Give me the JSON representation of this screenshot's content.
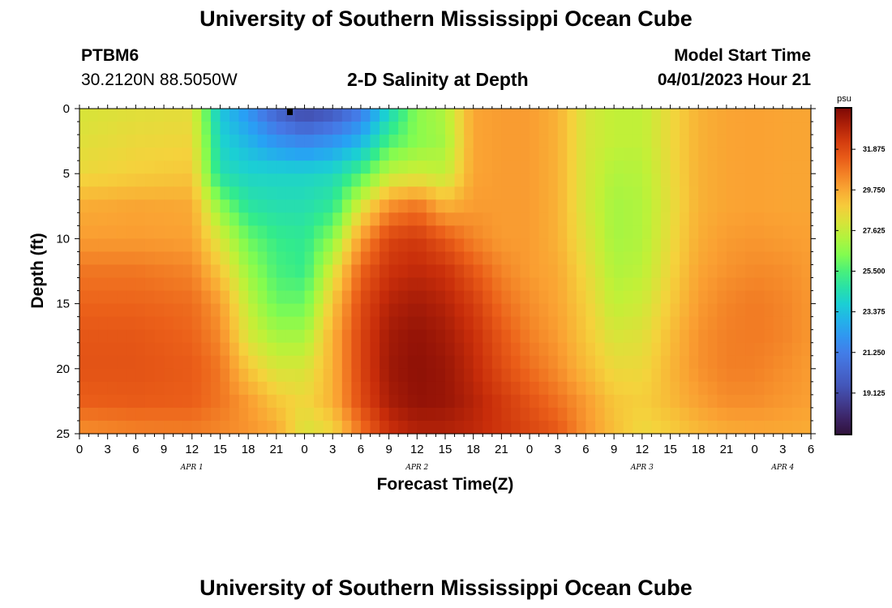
{
  "header": {
    "title": "University of Southern Mississippi Ocean Cube",
    "station_id": "PTBM6",
    "station_coords": "30.2120N  88.5050W",
    "plot_title": "2-D Salinity at Depth",
    "model_start_label": "Model Start Time",
    "model_start_value": "04/01/2023 Hour 21"
  },
  "footer": {
    "title": "University of Southern Mississippi Ocean Cube"
  },
  "chart_data": {
    "type": "heatmap",
    "title": "2-D Salinity at Depth",
    "xlabel": "Forecast Time(Z)",
    "ylabel": "Depth (ft)",
    "units": "psu",
    "x_range_hours": [
      0,
      78
    ],
    "y_range_ft": [
      0,
      25
    ],
    "x_tick_labels": [
      "0",
      "3",
      "6",
      "9",
      "12",
      "15",
      "18",
      "21",
      "0",
      "3",
      "6",
      "9",
      "12",
      "15",
      "18",
      "21",
      "0",
      "3",
      "6",
      "9",
      "12",
      "15",
      "18",
      "21",
      "0",
      "3",
      "6"
    ],
    "y_tick_labels": [
      "0",
      "5",
      "10",
      "15",
      "20",
      "25"
    ],
    "day_labels": [
      {
        "label": "APR 1",
        "hour": 12
      },
      {
        "label": "APR 2",
        "hour": 36
      },
      {
        "label": "APR 3",
        "hour": 60
      },
      {
        "label": "APR 4",
        "hour": 75
      }
    ],
    "colorbar": {
      "min": 17.0,
      "max": 34.0,
      "tick_labels": [
        "31.875",
        "29.750",
        "27.625",
        "25.500",
        "23.375",
        "21.250",
        "19.125"
      ],
      "tick_values": [
        31.875,
        29.75,
        27.625,
        25.5,
        23.375,
        21.25,
        19.125
      ]
    },
    "salinity_grid": {
      "hours": [
        0,
        6,
        12,
        15,
        18,
        21,
        24,
        27,
        30,
        33,
        36,
        39,
        42,
        45,
        48,
        51,
        54,
        57,
        60,
        63,
        66,
        69,
        72,
        75,
        78
      ],
      "depths_ft": [
        0,
        2.5,
        5,
        7.5,
        10,
        12.5,
        15,
        17.5,
        20,
        22.5,
        25
      ],
      "rows": [
        [
          28.0,
          28.2,
          28.3,
          23.5,
          22.0,
          20.0,
          18.8,
          19.5,
          21.0,
          24.0,
          26.5,
          27.2,
          29.8,
          30.0,
          30.0,
          29.5,
          28.0,
          27.5,
          27.5,
          28.5,
          29.5,
          29.8,
          29.9,
          29.8,
          29.8
        ],
        [
          28.2,
          28.5,
          28.6,
          24.0,
          23.0,
          22.0,
          21.5,
          22.0,
          23.0,
          25.5,
          26.5,
          27.0,
          29.8,
          30.0,
          30.0,
          29.5,
          28.0,
          27.5,
          27.5,
          28.5,
          29.5,
          29.8,
          29.9,
          29.8,
          29.8
        ],
        [
          28.5,
          28.8,
          29.0,
          24.5,
          24.0,
          24.0,
          24.0,
          24.2,
          25.5,
          27.5,
          27.8,
          27.5,
          29.8,
          30.0,
          30.0,
          29.5,
          28.0,
          27.2,
          27.3,
          28.4,
          29.5,
          29.8,
          29.9,
          29.8,
          29.8
        ],
        [
          29.6,
          29.8,
          29.7,
          26.5,
          24.8,
          24.5,
          24.5,
          25.0,
          28.0,
          30.2,
          30.8,
          29.5,
          30.0,
          30.0,
          30.0,
          29.5,
          28.0,
          27.0,
          27.2,
          28.3,
          29.5,
          29.8,
          29.9,
          29.8,
          29.8
        ],
        [
          30.0,
          30.0,
          29.9,
          28.0,
          26.0,
          25.2,
          25.0,
          26.5,
          30.0,
          32.0,
          32.3,
          31.5,
          30.5,
          30.0,
          30.0,
          29.5,
          28.2,
          27.0,
          27.2,
          28.4,
          29.6,
          30.0,
          30.1,
          30.0,
          29.9
        ],
        [
          30.8,
          30.8,
          30.5,
          29.0,
          26.8,
          25.5,
          25.2,
          28.0,
          31.2,
          32.5,
          32.8,
          32.5,
          31.5,
          30.5,
          30.0,
          29.7,
          28.5,
          27.2,
          27.4,
          28.6,
          29.8,
          30.2,
          30.4,
          30.3,
          30.0
        ],
        [
          31.2,
          31.2,
          31.0,
          30.0,
          27.5,
          26.0,
          26.0,
          29.0,
          31.8,
          33.0,
          33.3,
          33.0,
          32.2,
          31.0,
          30.3,
          29.8,
          28.8,
          27.5,
          27.8,
          28.9,
          30.0,
          30.5,
          30.7,
          30.5,
          30.1
        ],
        [
          31.5,
          31.5,
          31.2,
          30.4,
          28.0,
          27.0,
          27.0,
          29.5,
          32.0,
          33.3,
          33.6,
          33.3,
          32.6,
          31.5,
          30.6,
          30.0,
          29.0,
          28.0,
          28.2,
          29.2,
          30.2,
          30.6,
          30.7,
          30.5,
          30.1
        ],
        [
          31.6,
          31.6,
          31.4,
          30.8,
          29.0,
          28.0,
          28.0,
          29.5,
          32.0,
          33.4,
          33.7,
          33.5,
          32.8,
          31.8,
          31.0,
          30.3,
          29.3,
          28.5,
          28.5,
          29.4,
          30.2,
          30.6,
          30.6,
          30.3,
          30.0
        ],
        [
          31.3,
          31.4,
          31.3,
          30.8,
          30.0,
          29.0,
          28.5,
          29.5,
          31.8,
          33.2,
          33.6,
          33.5,
          33.0,
          32.3,
          31.6,
          30.9,
          30.0,
          29.0,
          28.8,
          29.3,
          29.9,
          30.3,
          30.3,
          30.1,
          29.9
        ],
        [
          30.2,
          30.5,
          30.6,
          30.4,
          30.2,
          29.8,
          28.0,
          28.5,
          30.8,
          32.5,
          33.0,
          33.0,
          32.8,
          32.4,
          32.0,
          31.5,
          30.2,
          29.2,
          28.5,
          28.8,
          29.3,
          29.6,
          29.7,
          29.7,
          29.6
        ]
      ]
    }
  }
}
